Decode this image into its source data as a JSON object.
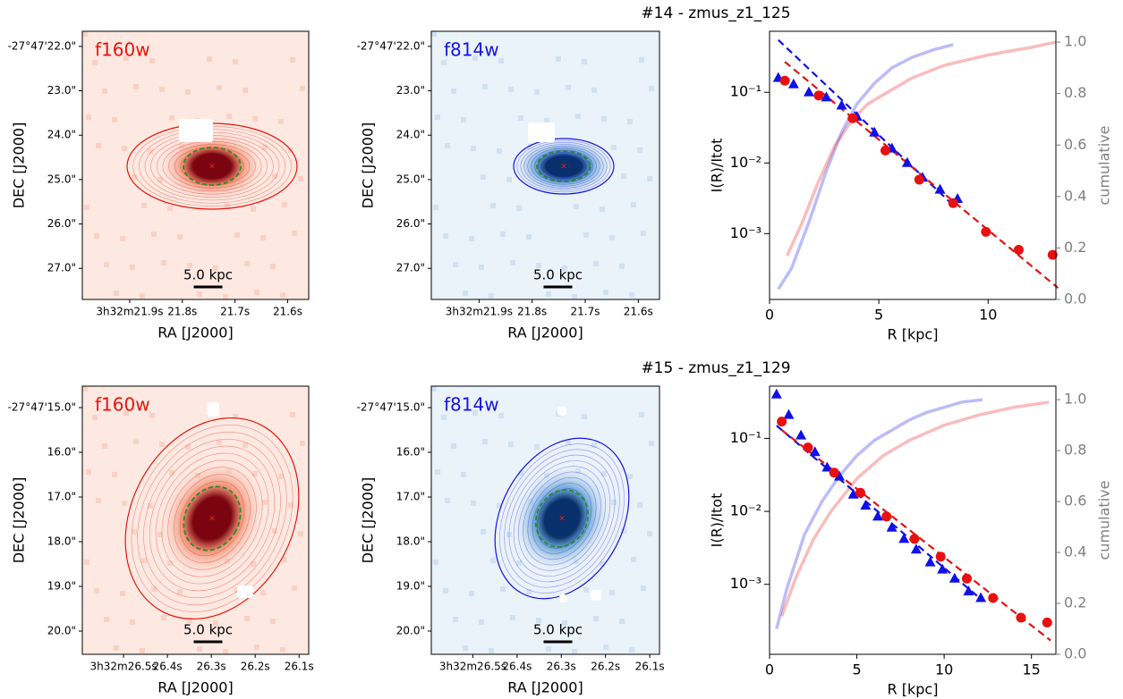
{
  "chart_data": [
    {
      "type": "image",
      "band": "f160w",
      "color": "#e8140c",
      "cmap": "Reds",
      "scalebar": "5.0 kpc",
      "xlabel": "RA [J2000]",
      "ylabel": "DEC [J2000]",
      "xlim": [
        21.99,
        21.56
      ],
      "ylim": [
        21.66,
        27.7
      ],
      "xticks": [
        {
          "value": 21.9,
          "label": "3h32m21.9s"
        },
        {
          "value": 21.8,
          "label": "21.8s"
        },
        {
          "value": 21.7,
          "label": "21.7s"
        },
        {
          "value": 21.6,
          "label": "21.6s"
        }
      ],
      "yticks": [
        {
          "value": 22,
          "label": "-27°47'22.0\""
        },
        {
          "value": 23,
          "label": "23.0\""
        },
        {
          "value": 24,
          "label": "24.0\""
        },
        {
          "value": 25,
          "label": "25.0\""
        },
        {
          "value": 26,
          "label": "26.0\""
        },
        {
          "value": 27,
          "label": "27.0\""
        }
      ]
    },
    {
      "type": "image",
      "band": "f814w",
      "color": "#1515e0",
      "cmap": "Blues",
      "scalebar": "5.0 kpc",
      "xlabel": "RA [J2000]",
      "ylabel": "DEC [J2000]",
      "xlim": [
        21.99,
        21.56
      ],
      "ylim": [
        21.66,
        27.7
      ],
      "xticks": [
        {
          "value": 21.9,
          "label": "3h32m21.9s"
        },
        {
          "value": 21.8,
          "label": "21.8s"
        },
        {
          "value": 21.7,
          "label": "21.7s"
        },
        {
          "value": 21.6,
          "label": "21.6s"
        }
      ],
      "yticks": [
        {
          "value": 22,
          "label": "-27°47'22.0\""
        },
        {
          "value": 23,
          "label": "23.0\""
        },
        {
          "value": 24,
          "label": "24.0\""
        },
        {
          "value": 25,
          "label": "25.0\""
        },
        {
          "value": 26,
          "label": "26.0\""
        },
        {
          "value": 27,
          "label": "27.0\""
        }
      ]
    },
    {
      "type": "profile",
      "title": "#14 - zmus_z1_125",
      "xlabel": "R [kpc]",
      "ylabel": "I(R)/Itot",
      "y2label": "cumulative",
      "log_y": true,
      "xlim": [
        0,
        13.1
      ],
      "xticks": [
        0,
        5,
        10
      ],
      "ylim": [
        0.000117,
        0.73
      ],
      "yticks": [
        {
          "value": 0.001,
          "label": "10⁻³"
        },
        {
          "value": 0.01,
          "label": "10⁻²"
        },
        {
          "value": 0.1,
          "label": "10⁻¹"
        }
      ],
      "y2lim": [
        0,
        1.042
      ],
      "y2ticks": [
        {
          "value": 0,
          "label": "0.0"
        },
        0.2,
        0.4,
        0.6,
        0.8,
        {
          "value": 1,
          "label": "1.0"
        }
      ],
      "series": [
        {
          "color": "#1010e8",
          "style": "triangle",
          "x": [
            0.4,
            1.1,
            1.8,
            2.6,
            3.3,
            4.0,
            4.8,
            5.6,
            6.3,
            7.0,
            7.8,
            8.6
          ],
          "values": [
            0.16,
            0.13,
            0.1,
            0.085,
            0.065,
            0.045,
            0.027,
            0.016,
            0.01,
            0.0062,
            0.0042,
            0.0031
          ]
        },
        {
          "color": "#e81010",
          "style": "circle",
          "x": [
            0.7,
            2.25,
            3.8,
            5.3,
            6.85,
            8.4,
            9.9,
            11.4,
            12.95
          ],
          "values": [
            0.146,
            0.09,
            0.043,
            0.015,
            0.0058,
            0.0027,
            0.00106,
            0.00059,
            0.0005
          ]
        },
        {
          "color": "#1010e8",
          "style": "dashed",
          "x": [
            0.4,
            8.3
          ],
          "values": [
            0.55,
            0.0027
          ]
        },
        {
          "color": "#e81010",
          "style": "dashed",
          "x": [
            0.7,
            13.2
          ],
          "values": [
            0.27,
            0.00017
          ]
        },
        {
          "color": "#1010e8",
          "style": "faint",
          "axis": "y2",
          "x": [
            0.4,
            1,
            1.8,
            2.6,
            3.3,
            4,
            4.8,
            5.6,
            6.5,
            7.5,
            8.4
          ],
          "values": [
            0.04,
            0.12,
            0.3,
            0.5,
            0.65,
            0.76,
            0.84,
            0.9,
            0.94,
            0.97,
            0.99
          ]
        },
        {
          "color": "#e81010",
          "style": "faint",
          "axis": "y2",
          "x": [
            0.8,
            1.5,
            2.2,
            3.0,
            3.8,
            4.5,
            5.3,
            6.5,
            8,
            10,
            12,
            13.1
          ],
          "values": [
            0.17,
            0.3,
            0.45,
            0.6,
            0.7,
            0.76,
            0.8,
            0.86,
            0.91,
            0.95,
            0.98,
            1.0
          ]
        }
      ]
    },
    {
      "type": "image",
      "band": "f160w",
      "color": "#e8140c",
      "cmap": "Reds",
      "scalebar": "5.0 kpc",
      "xlabel": "RA [J2000]",
      "ylabel": "DEC [J2000]",
      "xlim": [
        26.594,
        26.078
      ],
      "ylim": [
        14.52,
        20.52
      ],
      "xticks": [
        {
          "value": 26.5,
          "label": "3h32m26.5s"
        },
        {
          "value": 26.4,
          "label": "26.4s"
        },
        {
          "value": 26.3,
          "label": "26.3s"
        },
        {
          "value": 26.2,
          "label": "26.2s"
        },
        {
          "value": 26.1,
          "label": "26.1s"
        }
      ],
      "yticks": [
        {
          "value": 15,
          "label": "-27°47'15.0\""
        },
        {
          "value": 16,
          "label": "16.0\""
        },
        {
          "value": 17,
          "label": "17.0\""
        },
        {
          "value": 18,
          "label": "18.0\""
        },
        {
          "value": 19,
          "label": "19.0\""
        },
        {
          "value": 20,
          "label": "20.0\""
        }
      ]
    },
    {
      "type": "image",
      "band": "f814w",
      "color": "#1515e0",
      "cmap": "Blues",
      "scalebar": "5.0 kpc",
      "xlabel": "RA [J2000]",
      "ylabel": "DEC [J2000]",
      "xlim": [
        26.594,
        26.078
      ],
      "ylim": [
        14.52,
        20.52
      ],
      "xticks": [
        {
          "value": 26.5,
          "label": "3h32m26.5s"
        },
        {
          "value": 26.4,
          "label": "26.4s"
        },
        {
          "value": 26.3,
          "label": "26.3s"
        },
        {
          "value": 26.2,
          "label": "26.2s"
        },
        {
          "value": 26.1,
          "label": "26.1s"
        }
      ],
      "yticks": [
        {
          "value": 15,
          "label": "-27°47'15.0\""
        },
        {
          "value": 16,
          "label": "16.0\""
        },
        {
          "value": 17,
          "label": "17.0\""
        },
        {
          "value": 18,
          "label": "18.0\""
        },
        {
          "value": 19,
          "label": "19.0\""
        },
        {
          "value": 20,
          "label": "20.0\""
        }
      ]
    },
    {
      "type": "profile",
      "title": "#15 - zmus_z1_129",
      "xlabel": "R [kpc]",
      "ylabel": "I(R)/Itot",
      "y2label": "cumulative",
      "log_y": true,
      "xlim": [
        0,
        16.4
      ],
      "xticks": [
        0,
        5,
        10,
        15
      ],
      "ylim": [
        0.00011,
        0.52
      ],
      "yticks": [
        {
          "value": 0.001,
          "label": "10⁻³"
        },
        {
          "value": 0.01,
          "label": "10⁻²"
        },
        {
          "value": 0.1,
          "label": "10⁻¹"
        }
      ],
      "y2lim": [
        0,
        1.053
      ],
      "y2ticks": [
        {
          "value": 0,
          "label": "0.0"
        },
        0.2,
        0.4,
        0.6,
        0.8,
        {
          "value": 1,
          "label": "1.0"
        }
      ],
      "series": [
        {
          "color": "#1010e8",
          "style": "triangle",
          "x": [
            0.4,
            1.1,
            1.8,
            2.6,
            3.3,
            4.0,
            4.8,
            5.5,
            6.2,
            7.0,
            7.7,
            8.4,
            9.2,
            9.9,
            10.6,
            11.4,
            12.1
          ],
          "values": [
            0.4,
            0.21,
            0.11,
            0.065,
            0.04,
            0.03,
            0.017,
            0.012,
            0.0085,
            0.006,
            0.0042,
            0.003,
            0.002,
            0.0016,
            0.0012,
            0.0008,
            0.00065
          ]
        },
        {
          "color": "#e81010",
          "style": "circle",
          "x": [
            0.7,
            2.2,
            3.7,
            5.2,
            6.7,
            8.3,
            9.8,
            11.3,
            12.8,
            14.4,
            15.9
          ],
          "values": [
            0.17,
            0.075,
            0.034,
            0.018,
            0.0085,
            0.0042,
            0.0024,
            0.0012,
            0.00065,
            0.00035,
            0.0003
          ]
        },
        {
          "color": "#1010e8",
          "style": "dashed",
          "x": [
            0.4,
            12.2
          ],
          "values": [
            0.15,
            0.0006
          ]
        },
        {
          "color": "#e81010",
          "style": "dashed",
          "x": [
            0.7,
            16.1
          ],
          "values": [
            0.13,
            0.00017
          ]
        },
        {
          "color": "#1010e8",
          "style": "faint",
          "axis": "y2",
          "x": [
            0.4,
            1,
            2,
            3,
            4,
            5,
            6,
            7,
            8,
            9,
            10,
            11,
            12.2
          ],
          "values": [
            0.1,
            0.26,
            0.47,
            0.6,
            0.7,
            0.78,
            0.84,
            0.88,
            0.92,
            0.95,
            0.97,
            0.99,
            1.0
          ]
        },
        {
          "color": "#e81010",
          "style": "faint",
          "axis": "y2",
          "x": [
            0.7,
            1.5,
            2.5,
            3.5,
            5,
            6.5,
            8,
            10,
            12,
            14,
            16
          ],
          "values": [
            0.15,
            0.3,
            0.45,
            0.56,
            0.69,
            0.78,
            0.84,
            0.9,
            0.94,
            0.97,
            0.99
          ]
        }
      ]
    }
  ]
}
